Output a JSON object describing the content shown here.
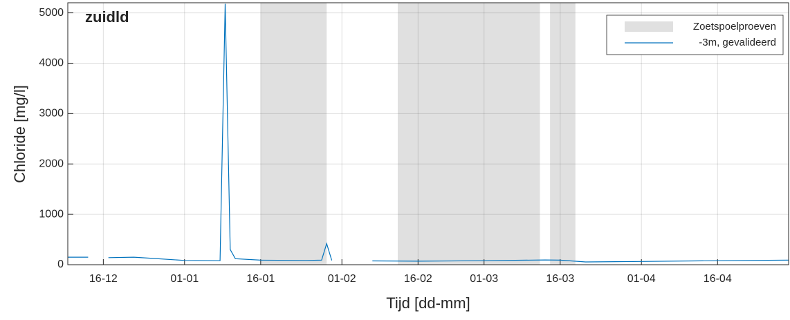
{
  "chart_data": {
    "type": "line",
    "title": "zuidld",
    "x_label": "Tijd [dd-mm]",
    "y_label": "Chloride [mg/l]",
    "x": [
      "09-12",
      "13-12",
      "15-12",
      "17-12",
      "22-12",
      "25-12",
      "01-01",
      "08-01",
      "09-01",
      "10-01",
      "11-01",
      "16-01",
      "25-01",
      "28-01",
      "29-01",
      "30-01",
      "31-01",
      "07-02",
      "16-02",
      "01-03",
      "13-03",
      "16-03",
      "21-03",
      "01-04",
      "16-04",
      "30-04"
    ],
    "series": [
      {
        "name": "-3m, gevalideerd",
        "color": "#0072bd",
        "values": [
          150,
          150,
          null,
          140,
          150,
          130,
          85,
          80,
          5180,
          300,
          120,
          90,
          85,
          90,
          420,
          85,
          null,
          75,
          70,
          80,
          95,
          90,
          55,
          65,
          80,
          90
        ]
      }
    ],
    "shaded_regions": {
      "name": "Zoetspoelproeven",
      "color": "#e0e0e0",
      "ranges": [
        [
          "16-01",
          "29-01"
        ],
        [
          "12-02",
          "12-03"
        ],
        [
          "14-03",
          "19-03"
        ]
      ]
    },
    "xlim": [
      "09-12",
      "30-04"
    ],
    "xticks": [
      "16-12",
      "01-01",
      "16-01",
      "01-02",
      "16-02",
      "01-03",
      "16-03",
      "01-04",
      "16-04"
    ],
    "ylim": [
      0,
      5200
    ],
    "yticks": [
      0,
      1000,
      2000,
      3000,
      4000,
      5000
    ],
    "grid": true,
    "legend": "top-right"
  }
}
